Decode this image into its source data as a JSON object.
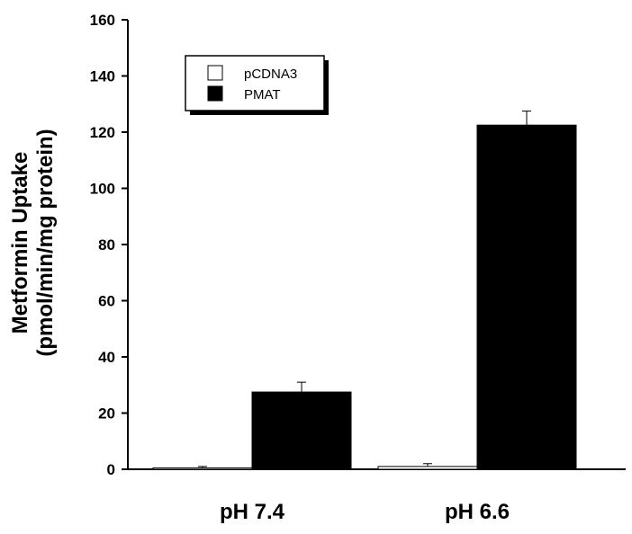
{
  "chart_data": {
    "type": "bar",
    "categories": [
      "pH 7.4",
      "pH 6.6"
    ],
    "series": [
      {
        "name": "pCDNA3",
        "values": [
          0.5,
          1.0
        ],
        "errors": [
          0.5,
          1.0
        ],
        "color": "#ffffff"
      },
      {
        "name": "PMAT",
        "values": [
          27.5,
          122.5
        ],
        "errors": [
          3.5,
          5.0
        ],
        "color": "#000000"
      }
    ],
    "ylabel_line1": "Metformin Uptake",
    "ylabel_line2": "(pmol/min/mg protein)",
    "ylim": [
      0,
      160
    ],
    "yticks": [
      "0",
      "20",
      "40",
      "60",
      "80",
      "100",
      "120",
      "140",
      "160"
    ],
    "grid": false,
    "legend_position": "top-left"
  }
}
